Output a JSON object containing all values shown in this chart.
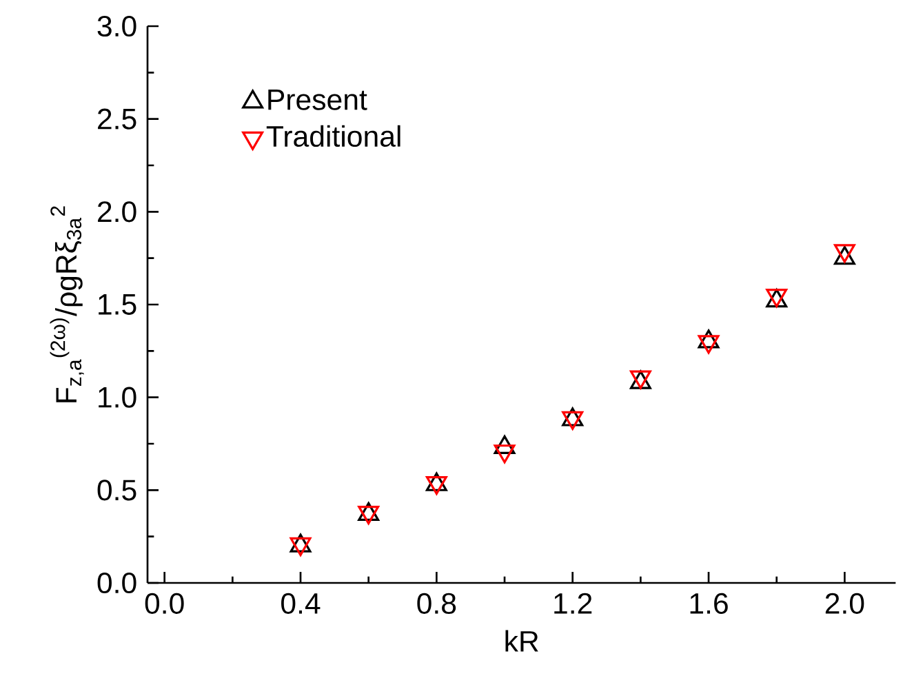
{
  "chart_data": {
    "type": "scatter",
    "xlabel": "kR",
    "ylabel": "F$_{z,a}$$^{(2ω)}$/ρgRξ$_{3a}$$^{2}$",
    "x": [
      0.4,
      0.6,
      0.8,
      1.0,
      1.2,
      1.4,
      1.6,
      1.8,
      2.0
    ],
    "series": [
      {
        "name": "Present",
        "color": "#000000",
        "marker": "triangle",
        "values": [
          0.2,
          0.37,
          0.53,
          0.73,
          0.88,
          1.08,
          1.3,
          1.52,
          1.75
        ]
      },
      {
        "name": "Traditional",
        "color": "#ff0000",
        "marker": "triangle-down",
        "values": [
          0.21,
          0.38,
          0.54,
          0.71,
          0.89,
          1.11,
          1.3,
          1.55,
          1.79
        ]
      }
    ],
    "xlim": [
      -0.05,
      2.15
    ],
    "ylim": [
      0,
      3.0
    ],
    "xticks": [
      {
        "value": 0.0,
        "label": "0.0"
      },
      0.4,
      0.8,
      1.2,
      1.6,
      {
        "value": 2.0,
        "label": "2.0"
      }
    ],
    "yticks": [
      {
        "value": 0.0,
        "label": "0.0"
      },
      0.5,
      {
        "value": 1.0,
        "label": "1.0"
      },
      1.5,
      {
        "value": 2.0,
        "label": "2.0"
      },
      2.5,
      {
        "value": 3.0,
        "label": "3.0"
      }
    ],
    "grid": false,
    "legend": "top left"
  }
}
